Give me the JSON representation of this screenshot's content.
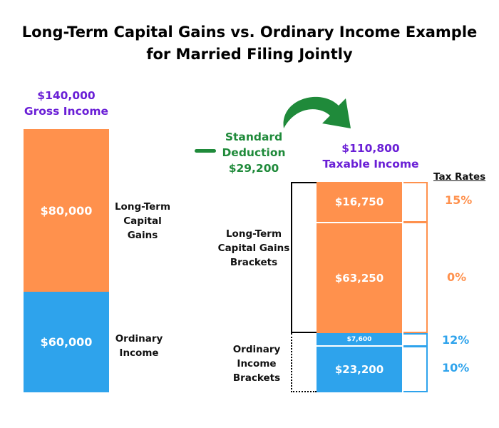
{
  "title_line1": "Long-Term Capital Gains vs. Ordinary Income Example",
  "title_line2": "for Married Filing Jointly",
  "gross": {
    "amount": "$140,000",
    "label": "Gross Income"
  },
  "left_bars": [
    {
      "value": "$80,000",
      "label_lines": [
        "Long-Term",
        "Capital",
        "Gains"
      ],
      "color": "#ff914d"
    },
    {
      "value": "$60,000",
      "label_lines": [
        "Ordinary",
        "Income"
      ],
      "color": "#2ea3ec"
    }
  ],
  "deduction": {
    "line1": "Standard",
    "line2": "Deduction",
    "amount": "$29,200",
    "color": "#1f8a3a"
  },
  "taxable": {
    "amount": "$110,800",
    "label": "Taxable Income"
  },
  "tax_rates_header": "Tax Rates",
  "right_bars": [
    {
      "value": "$16,750",
      "rate": "15%"
    },
    {
      "value": "$63,250",
      "rate": "0%"
    },
    {
      "value": "$7,600",
      "rate": "12%"
    },
    {
      "value": "$23,200",
      "rate": "10%"
    }
  ],
  "brackets": {
    "ltcg_lines": [
      "Long-Term",
      "Capital Gains",
      "Brackets"
    ],
    "ordinary_lines": [
      "Ordinary",
      "Income",
      "Brackets"
    ]
  },
  "colors": {
    "orange": "#ff914d",
    "blue": "#2ea3ec",
    "purple": "#6a1fd6",
    "green": "#1f8a3a"
  }
}
